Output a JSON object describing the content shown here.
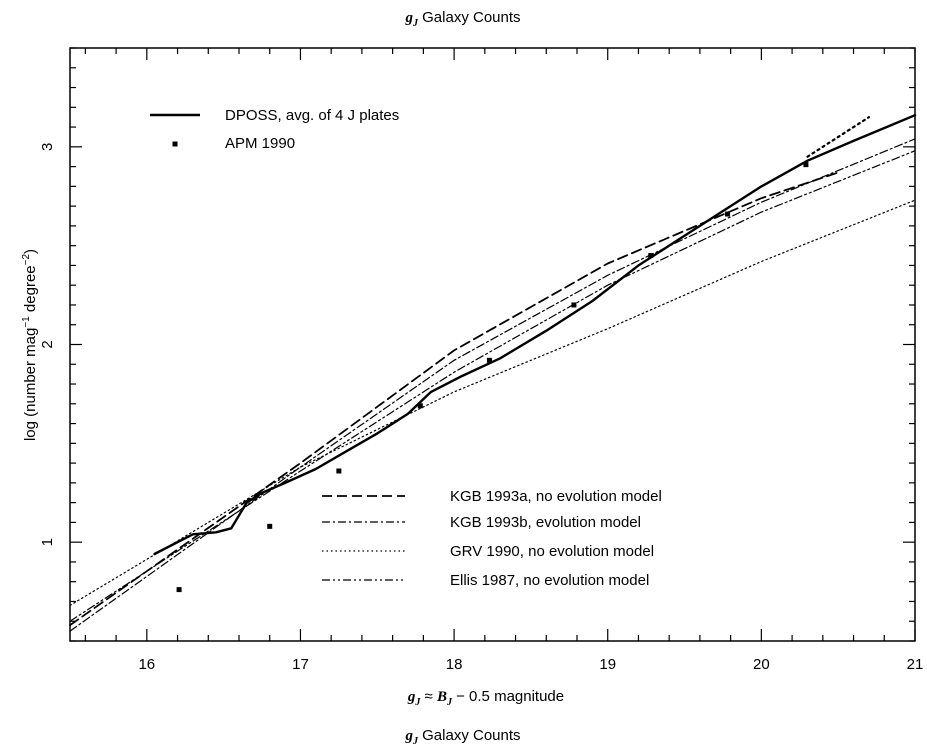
{
  "chart_data": {
    "type": "line",
    "title_symbol": "g",
    "title_subscript": "J",
    "title_text": " Galaxy Counts",
    "caption_symbol": "g",
    "caption_subscript": "J",
    "caption_text": " Galaxy Counts",
    "xlabel": {
      "sym1": "g",
      "sub1": "J",
      "approx": " ≈ ",
      "sym2": "B",
      "sub2": "J",
      "rest": " − 0.5 magnitude"
    },
    "ylabel": {
      "pre": "log (number mag",
      "sup1": "−1",
      "mid": " degree",
      "sup2": "−2",
      "post": ")"
    },
    "xlim": [
      15.5,
      21
    ],
    "ylim": [
      0.5,
      3.5
    ],
    "x_ticks": [
      16,
      17,
      18,
      19,
      20,
      21
    ],
    "y_ticks": [
      1,
      2,
      3
    ],
    "y_tick_labels_rotated": true,
    "grid": false,
    "series": [
      {
        "name": "DPOSS, avg. of 4 J plates",
        "style": "solid",
        "points": [
          [
            16.05,
            0.94
          ],
          [
            16.2,
            1.0
          ],
          [
            16.3,
            1.04
          ],
          [
            16.45,
            1.05
          ],
          [
            16.55,
            1.07
          ],
          [
            16.65,
            1.2
          ],
          [
            16.75,
            1.25
          ],
          [
            16.9,
            1.3
          ],
          [
            17.1,
            1.37
          ],
          [
            17.3,
            1.46
          ],
          [
            17.5,
            1.55
          ],
          [
            17.7,
            1.65
          ],
          [
            17.85,
            1.76
          ],
          [
            18.05,
            1.84
          ],
          [
            18.3,
            1.93
          ],
          [
            18.6,
            2.07
          ],
          [
            18.9,
            2.22
          ],
          [
            19.2,
            2.4
          ],
          [
            19.5,
            2.55
          ],
          [
            19.8,
            2.7
          ],
          [
            20.0,
            2.8
          ],
          [
            20.3,
            2.93
          ],
          [
            20.6,
            3.03
          ],
          [
            21.0,
            3.16
          ]
        ]
      },
      {
        "name": "APM 1990",
        "style": "points",
        "points": [
          [
            16.21,
            0.76
          ],
          [
            16.8,
            1.08
          ],
          [
            17.25,
            1.36
          ],
          [
            17.78,
            1.69
          ],
          [
            18.23,
            1.92
          ],
          [
            18.78,
            2.2
          ],
          [
            19.28,
            2.45
          ],
          [
            19.78,
            2.66
          ],
          [
            20.29,
            2.91
          ]
        ]
      },
      {
        "name": "KGB 1993a, no evolution model",
        "style": "dashed",
        "points": [
          [
            15.5,
            0.58
          ],
          [
            17.0,
            1.4
          ],
          [
            18.0,
            1.97
          ],
          [
            19.0,
            2.41
          ],
          [
            20.0,
            2.74
          ],
          [
            20.5,
            2.87
          ]
        ]
      },
      {
        "name": "KGB 1993b, evolution model",
        "style": "dashdot",
        "points": [
          [
            15.5,
            0.55
          ],
          [
            17.0,
            1.38
          ],
          [
            18.0,
            1.92
          ],
          [
            19.0,
            2.35
          ],
          [
            20.0,
            2.72
          ],
          [
            21.0,
            3.04
          ]
        ]
      },
      {
        "name": "GRV 1990, no evolution model",
        "style": "dotted",
        "points": [
          [
            15.5,
            0.68
          ],
          [
            17.0,
            1.38
          ],
          [
            17.5,
            1.57
          ],
          [
            18.0,
            1.76
          ],
          [
            19.0,
            2.08
          ],
          [
            20.0,
            2.42
          ],
          [
            21.0,
            2.73
          ]
        ]
      },
      {
        "name": "Ellis 1987, no evolution model",
        "style": "dashdotdot",
        "points": [
          [
            15.5,
            0.6
          ],
          [
            17.0,
            1.36
          ],
          [
            18.0,
            1.86
          ],
          [
            19.0,
            2.3
          ],
          [
            20.0,
            2.67
          ],
          [
            21.0,
            2.98
          ]
        ]
      },
      {
        "name": "",
        "style": "dotted-heavy",
        "points": [
          [
            20.3,
            2.95
          ],
          [
            20.7,
            3.15
          ]
        ]
      }
    ]
  }
}
